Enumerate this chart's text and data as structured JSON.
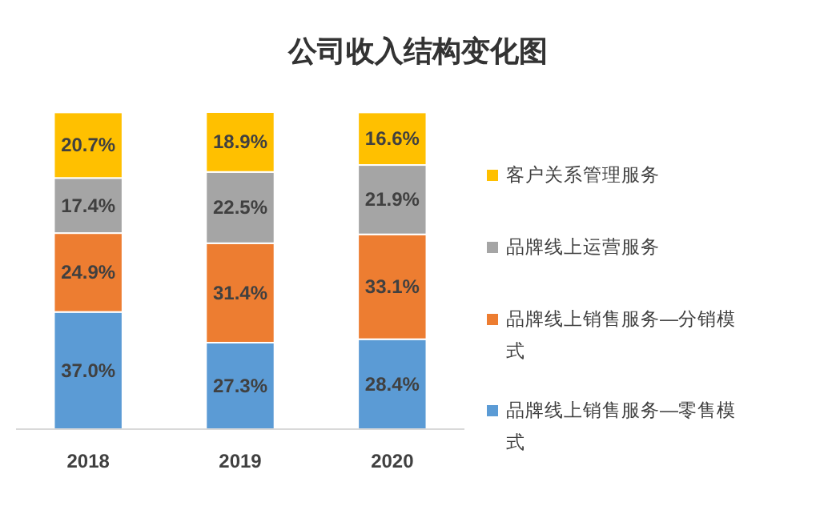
{
  "chart_data": {
    "type": "bar",
    "title": "公司收入结构变化图",
    "stacked": true,
    "categories": [
      "2018",
      "2019",
      "2020"
    ],
    "tick_labels": "x",
    "legend": "right",
    "series": [
      {
        "name": "品牌线上销售服务—零售模式",
        "color": "#5b9bd5",
        "values": [
          37.0,
          27.3,
          28.4
        ],
        "value_labels": [
          "37.0%",
          "27.3%",
          "28.4%"
        ]
      },
      {
        "name": "品牌线上销售服务—分销模式",
        "color": "#ed7d31",
        "values": [
          24.9,
          31.4,
          33.1
        ],
        "value_labels": [
          "24.9%",
          "31.4%",
          "33.1%"
        ]
      },
      {
        "name": "品牌线上运营服务",
        "color": "#a5a5a5",
        "values": [
          17.4,
          22.5,
          21.9
        ],
        "value_labels": [
          "17.4%",
          "22.5%",
          "21.9%"
        ]
      },
      {
        "name": "客户关系管理服务",
        "color": "#ffc000",
        "values": [
          20.7,
          18.9,
          16.6
        ],
        "value_labels": [
          "20.7%",
          "18.9%",
          "16.6%"
        ]
      }
    ]
  }
}
